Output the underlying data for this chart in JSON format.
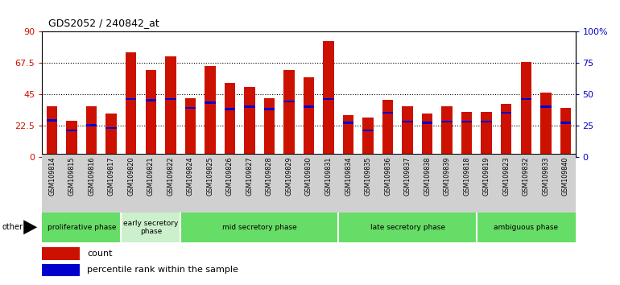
{
  "title": "GDS2052 / 240842_at",
  "samples": [
    "GSM109814",
    "GSM109815",
    "GSM109816",
    "GSM109817",
    "GSM109820",
    "GSM109821",
    "GSM109822",
    "GSM109824",
    "GSM109825",
    "GSM109826",
    "GSM109827",
    "GSM109828",
    "GSM109829",
    "GSM109830",
    "GSM109831",
    "GSM109834",
    "GSM109835",
    "GSM109836",
    "GSM109837",
    "GSM109838",
    "GSM109839",
    "GSM109818",
    "GSM109819",
    "GSM109823",
    "GSM109832",
    "GSM109833",
    "GSM109840"
  ],
  "count_values": [
    36,
    26,
    36,
    31,
    75,
    62,
    72,
    42,
    65,
    53,
    50,
    42,
    62,
    57,
    83,
    30,
    28,
    41,
    36,
    31,
    36,
    32,
    32,
    38,
    68,
    46,
    35
  ],
  "percentile_values": [
    29,
    21,
    25,
    23,
    46,
    45,
    46,
    39,
    43,
    38,
    40,
    38,
    44,
    40,
    46,
    27,
    21,
    35,
    28,
    27,
    28,
    28,
    28,
    35,
    46,
    40,
    27
  ],
  "phases": [
    {
      "label": "proliferative phase",
      "start": 0,
      "end": 4,
      "color": "#66dd66"
    },
    {
      "label": "early secretory\nphase",
      "start": 4,
      "end": 7,
      "color": "#ccf0cc"
    },
    {
      "label": "mid secretory phase",
      "start": 7,
      "end": 15,
      "color": "#66dd66"
    },
    {
      "label": "late secretory phase",
      "start": 15,
      "end": 22,
      "color": "#66dd66"
    },
    {
      "label": "ambiguous phase",
      "start": 22,
      "end": 27,
      "color": "#66dd66"
    }
  ],
  "ylim_left": [
    0,
    90
  ],
  "ylim_right": [
    0,
    100
  ],
  "yticks_left": [
    0,
    22.5,
    45,
    67.5,
    90
  ],
  "yticks_left_labels": [
    "0",
    "22.5",
    "45",
    "67.5",
    "90"
  ],
  "yticks_right": [
    0,
    25,
    50,
    75,
    100
  ],
  "yticks_right_labels": [
    "0",
    "25",
    "50",
    "75",
    "100%"
  ],
  "bar_color": "#cc1100",
  "percentile_color": "#0000cc",
  "background_color": "#ffffff",
  "tick_bg_color": "#d0d0d0"
}
